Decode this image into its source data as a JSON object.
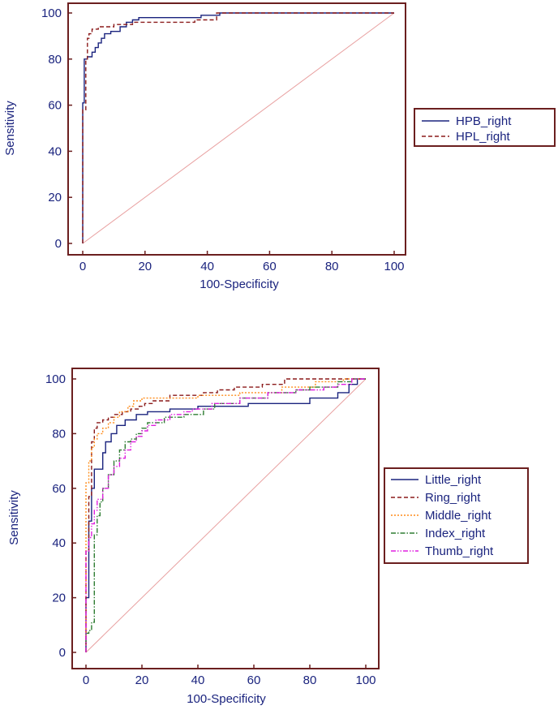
{
  "chart_data": [
    {
      "type": "line",
      "title": "",
      "xlabel": "100-Specificity",
      "ylabel": "Sensitivity",
      "xlim": [
        0,
        100
      ],
      "ylim": [
        0,
        100
      ],
      "xticks": [
        0,
        20,
        40,
        60,
        80,
        100
      ],
      "yticks": [
        0,
        20,
        40,
        60,
        80,
        100
      ],
      "grid": false,
      "legend_position": "right",
      "diagonal_reference": true,
      "series": [
        {
          "name": "HPB_right",
          "color": "#1a237e",
          "dash": "solid",
          "points": [
            [
              0,
              0
            ],
            [
              0,
              56
            ],
            [
              0,
              61
            ],
            [
              0.5,
              61
            ],
            [
              0.5,
              80
            ],
            [
              1.5,
              80
            ],
            [
              1.5,
              81
            ],
            [
              3,
              81
            ],
            [
              3,
              83
            ],
            [
              4,
              83
            ],
            [
              4,
              85
            ],
            [
              5,
              85
            ],
            [
              5,
              87
            ],
            [
              6,
              87
            ],
            [
              6,
              89
            ],
            [
              7,
              89
            ],
            [
              7,
              91
            ],
            [
              9,
              91
            ],
            [
              9,
              92
            ],
            [
              12,
              92
            ],
            [
              12,
              94
            ],
            [
              14,
              94
            ],
            [
              14,
              96
            ],
            [
              16,
              96
            ],
            [
              16,
              97
            ],
            [
              18,
              97
            ],
            [
              18,
              98
            ],
            [
              38,
              98
            ],
            [
              38,
              99
            ],
            [
              44,
              99
            ],
            [
              44,
              100
            ],
            [
              100,
              100
            ]
          ]
        },
        {
          "name": "HPL_right",
          "color": "#8b1a1a",
          "dash": "dashed",
          "points": [
            [
              0,
              0
            ],
            [
              0,
              58
            ],
            [
              1,
              58
            ],
            [
              1,
              80
            ],
            [
              1.5,
              80
            ],
            [
              1.5,
              89
            ],
            [
              2,
              89
            ],
            [
              2,
              91
            ],
            [
              3,
              91
            ],
            [
              3,
              93
            ],
            [
              5,
              93
            ],
            [
              5,
              94
            ],
            [
              10,
              94
            ],
            [
              10,
              95
            ],
            [
              16,
              95
            ],
            [
              16,
              96
            ],
            [
              36,
              96
            ],
            [
              36,
              97
            ],
            [
              43,
              97
            ],
            [
              43,
              100
            ],
            [
              100,
              100
            ]
          ]
        }
      ]
    },
    {
      "type": "line",
      "title": "",
      "xlabel": "100-Specificity",
      "ylabel": "Sensitivity",
      "xlim": [
        0,
        100
      ],
      "ylim": [
        0,
        100
      ],
      "xticks": [
        0,
        20,
        40,
        60,
        80,
        100
      ],
      "yticks": [
        0,
        20,
        40,
        60,
        80,
        100
      ],
      "grid": false,
      "legend_position": "right",
      "diagonal_reference": true,
      "series": [
        {
          "name": "Little_right",
          "color": "#1a237e",
          "dash": "solid",
          "points": [
            [
              0,
              0
            ],
            [
              0,
              20
            ],
            [
              1,
              20
            ],
            [
              1,
              48
            ],
            [
              2,
              48
            ],
            [
              2,
              60
            ],
            [
              3,
              60
            ],
            [
              3,
              67
            ],
            [
              6,
              67
            ],
            [
              6,
              73
            ],
            [
              7,
              73
            ],
            [
              7,
              77
            ],
            [
              9,
              77
            ],
            [
              9,
              80
            ],
            [
              11,
              80
            ],
            [
              11,
              83
            ],
            [
              14,
              83
            ],
            [
              14,
              85
            ],
            [
              18,
              85
            ],
            [
              18,
              87
            ],
            [
              22,
              87
            ],
            [
              22,
              88
            ],
            [
              30,
              88
            ],
            [
              30,
              89
            ],
            [
              40,
              89
            ],
            [
              40,
              90
            ],
            [
              58,
              90
            ],
            [
              58,
              91
            ],
            [
              80,
              91
            ],
            [
              80,
              93
            ],
            [
              90,
              93
            ],
            [
              90,
              95
            ],
            [
              94,
              95
            ],
            [
              94,
              98
            ],
            [
              97,
              98
            ],
            [
              97,
              100
            ],
            [
              100,
              100
            ]
          ]
        },
        {
          "name": "Ring_right",
          "color": "#8b1a1a",
          "dash": "dashed",
          "points": [
            [
              0,
              0
            ],
            [
              0,
              37
            ],
            [
              1,
              37
            ],
            [
              1,
              57
            ],
            [
              2,
              57
            ],
            [
              2,
              77
            ],
            [
              3,
              77
            ],
            [
              3,
              82
            ],
            [
              4,
              82
            ],
            [
              4,
              84
            ],
            [
              6,
              84
            ],
            [
              6,
              85
            ],
            [
              8,
              85
            ],
            [
              8,
              86
            ],
            [
              10,
              86
            ],
            [
              10,
              87
            ],
            [
              13,
              87
            ],
            [
              13,
              88
            ],
            [
              16,
              88
            ],
            [
              16,
              89
            ],
            [
              19,
              89
            ],
            [
              19,
              90
            ],
            [
              21,
              90
            ],
            [
              21,
              91
            ],
            [
              24,
              91
            ],
            [
              24,
              92
            ],
            [
              30,
              92
            ],
            [
              30,
              94
            ],
            [
              42,
              94
            ],
            [
              42,
              95
            ],
            [
              47,
              95
            ],
            [
              47,
              96
            ],
            [
              53,
              96
            ],
            [
              53,
              97
            ],
            [
              63,
              97
            ],
            [
              63,
              98
            ],
            [
              71,
              98
            ],
            [
              71,
              100
            ],
            [
              100,
              100
            ]
          ]
        },
        {
          "name": "Middle_right",
          "color": "#ff8c1a",
          "dash": "dotted",
          "points": [
            [
              0,
              0
            ],
            [
              0,
              62
            ],
            [
              1,
              62
            ],
            [
              1,
              70
            ],
            [
              2,
              70
            ],
            [
              2,
              75
            ],
            [
              3,
              75
            ],
            [
              3,
              78
            ],
            [
              4,
              78
            ],
            [
              4,
              80
            ],
            [
              6,
              80
            ],
            [
              6,
              82
            ],
            [
              8,
              82
            ],
            [
              8,
              84
            ],
            [
              10,
              84
            ],
            [
              10,
              86
            ],
            [
              12,
              86
            ],
            [
              12,
              88
            ],
            [
              15,
              88
            ],
            [
              15,
              90
            ],
            [
              17,
              90
            ],
            [
              17,
              92
            ],
            [
              20,
              92
            ],
            [
              20,
              93
            ],
            [
              40,
              93
            ],
            [
              40,
              94
            ],
            [
              55,
              94
            ],
            [
              55,
              95
            ],
            [
              70,
              95
            ],
            [
              70,
              97
            ],
            [
              82,
              97
            ],
            [
              82,
              99
            ],
            [
              92,
              99
            ],
            [
              92,
              100
            ],
            [
              100,
              100
            ]
          ]
        },
        {
          "name": "Index_right",
          "color": "#2e7d32",
          "dash": "dashdot",
          "points": [
            [
              0,
              0
            ],
            [
              0,
              7
            ],
            [
              1,
              7
            ],
            [
              1,
              8
            ],
            [
              2,
              8
            ],
            [
              2,
              11
            ],
            [
              3,
              11
            ],
            [
              3,
              43
            ],
            [
              4,
              43
            ],
            [
              4,
              50
            ],
            [
              5,
              50
            ],
            [
              5,
              55
            ],
            [
              6,
              55
            ],
            [
              6,
              60
            ],
            [
              8,
              60
            ],
            [
              8,
              65
            ],
            [
              10,
              65
            ],
            [
              10,
              70
            ],
            [
              12,
              70
            ],
            [
              12,
              74
            ],
            [
              14,
              74
            ],
            [
              14,
              77
            ],
            [
              16,
              77
            ],
            [
              16,
              78
            ],
            [
              18,
              78
            ],
            [
              18,
              80
            ],
            [
              20,
              80
            ],
            [
              20,
              82
            ],
            [
              22,
              82
            ],
            [
              22,
              84
            ],
            [
              28,
              84
            ],
            [
              28,
              86
            ],
            [
              35,
              86
            ],
            [
              35,
              87
            ],
            [
              42,
              87
            ],
            [
              42,
              89
            ],
            [
              46,
              89
            ],
            [
              46,
              91
            ],
            [
              55,
              91
            ],
            [
              55,
              93
            ],
            [
              65,
              93
            ],
            [
              65,
              95
            ],
            [
              75,
              95
            ],
            [
              75,
              96
            ],
            [
              80,
              96
            ],
            [
              80,
              97
            ],
            [
              90,
              97
            ],
            [
              90,
              99
            ],
            [
              95,
              99
            ],
            [
              95,
              100
            ],
            [
              100,
              100
            ]
          ]
        },
        {
          "name": "Thumb_right",
          "color": "#e020e0",
          "dash": "dashdotdot",
          "points": [
            [
              0,
              0
            ],
            [
              0,
              37
            ],
            [
              1,
              37
            ],
            [
              1,
              42
            ],
            [
              2,
              42
            ],
            [
              2,
              47
            ],
            [
              3,
              47
            ],
            [
              3,
              52
            ],
            [
              4,
              52
            ],
            [
              4,
              56
            ],
            [
              6,
              56
            ],
            [
              6,
              60
            ],
            [
              8,
              60
            ],
            [
              8,
              65
            ],
            [
              10,
              65
            ],
            [
              10,
              68
            ],
            [
              12,
              68
            ],
            [
              12,
              71
            ],
            [
              14,
              71
            ],
            [
              14,
              74
            ],
            [
              16,
              74
            ],
            [
              16,
              77
            ],
            [
              18,
              77
            ],
            [
              18,
              79
            ],
            [
              20,
              79
            ],
            [
              20,
              81
            ],
            [
              22,
              81
            ],
            [
              22,
              83
            ],
            [
              25,
              83
            ],
            [
              25,
              85
            ],
            [
              30,
              85
            ],
            [
              30,
              87
            ],
            [
              35,
              87
            ],
            [
              35,
              88
            ],
            [
              38,
              88
            ],
            [
              38,
              89
            ],
            [
              45,
              89
            ],
            [
              45,
              91
            ],
            [
              55,
              91
            ],
            [
              55,
              93
            ],
            [
              65,
              93
            ],
            [
              65,
              95
            ],
            [
              75,
              95
            ],
            [
              75,
              96
            ],
            [
              85,
              96
            ],
            [
              85,
              97
            ],
            [
              90,
              97
            ],
            [
              90,
              98
            ],
            [
              95,
              98
            ],
            [
              95,
              100
            ],
            [
              100,
              100
            ]
          ]
        }
      ]
    }
  ]
}
